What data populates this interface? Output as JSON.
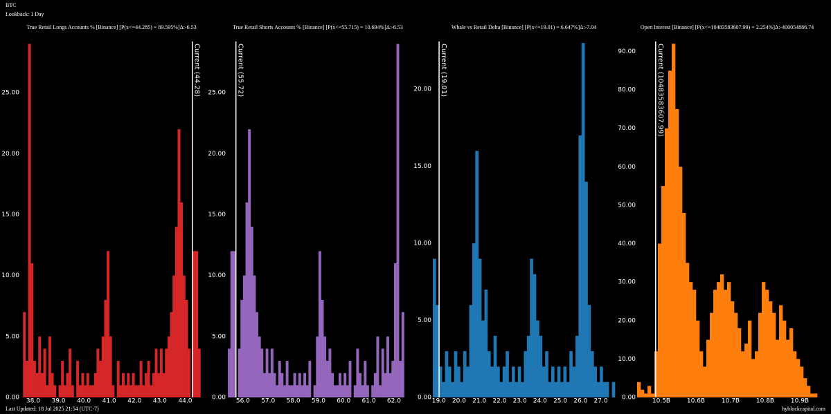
{
  "header": {
    "symbol": "BTC",
    "lookback": "Lookback: 1 Day"
  },
  "footer": {
    "updated": "Last Updated: 18 Jul 2025 21:54 (UTC-7)",
    "source": "hyblockcapital.com"
  },
  "chart_data": [
    {
      "type": "histogram",
      "title": "True Retail Longs Accounts % [Binance] [P(x<=44.285) = 89.595%]Δ:-6.53",
      "color": "#d62728",
      "bins": [
        37.6,
        37.7,
        37.8,
        37.9,
        38.0,
        38.1,
        38.2,
        38.3,
        38.4,
        38.5,
        38.6,
        38.7,
        38.8,
        38.9,
        39.0,
        39.1,
        39.2,
        39.3,
        39.4,
        39.5,
        39.6,
        39.7,
        39.8,
        39.9,
        40.0,
        40.1,
        40.2,
        40.3,
        40.4,
        40.5,
        40.6,
        40.7,
        40.8,
        40.9,
        41.0,
        41.1,
        41.2,
        41.3,
        41.4,
        41.5,
        41.6,
        41.7,
        41.8,
        41.9,
        42.0,
        42.1,
        42.2,
        42.3,
        42.4,
        42.5,
        42.6,
        42.7,
        42.8,
        42.9,
        43.0,
        43.1,
        43.2,
        43.3,
        43.4,
        43.5,
        43.6,
        43.7,
        43.8,
        43.9,
        44.0,
        44.1,
        44.2,
        44.3,
        44.4,
        44.5,
        44.6
      ],
      "counts": [
        7,
        3,
        29,
        11,
        3,
        2,
        5,
        2,
        4,
        1,
        5,
        2,
        1,
        0,
        1,
        3,
        1,
        2,
        4,
        1,
        0,
        3,
        1,
        2,
        1,
        2,
        1,
        1,
        2,
        4,
        3,
        5,
        8,
        12,
        5,
        1,
        0,
        3,
        1,
        2,
        1,
        2,
        1,
        2,
        1,
        1,
        3,
        1,
        2,
        3,
        1,
        2,
        4,
        2,
        4,
        2,
        4,
        5,
        7,
        10,
        14,
        22,
        16,
        10,
        8,
        4,
        0,
        12,
        12,
        4
      ],
      "xlim": [
        37.51,
        44.67
      ],
      "ylim": [
        0,
        29.2
      ],
      "xticks": [
        {
          "value": 38,
          "label": "38.0"
        },
        {
          "value": 39,
          "label": "39.0"
        },
        {
          "value": 40,
          "label": "40.0"
        },
        {
          "value": 41,
          "label": "41.0"
        },
        {
          "value": 42,
          "label": "42.0"
        },
        {
          "value": 43,
          "label": "43.0"
        },
        {
          "value": 44,
          "label": "44.0"
        }
      ],
      "yticks": [
        {
          "value": 0,
          "label": "0.00"
        },
        {
          "value": 5,
          "label": "5.00"
        },
        {
          "value": 10,
          "label": "10.00"
        },
        {
          "value": 15,
          "label": "15.00"
        },
        {
          "value": 20,
          "label": "20.00"
        },
        {
          "value": 25,
          "label": "25.00"
        }
      ],
      "current": 44.28,
      "current_label": "Current (44.28)"
    },
    {
      "type": "histogram",
      "title": "True Retail Shorts Accounts % [Binance] [P(x<=55.715) = 10.694%]Δ:-6.53",
      "color": "#9467bd",
      "bins": [
        55.4,
        55.5,
        55.6,
        55.7,
        55.8,
        55.9,
        56.0,
        56.1,
        56.2,
        56.3,
        56.4,
        56.5,
        56.6,
        56.7,
        56.8,
        56.9,
        57.0,
        57.1,
        57.2,
        57.3,
        57.4,
        57.5,
        57.6,
        57.7,
        57.8,
        57.9,
        58.0,
        58.1,
        58.2,
        58.3,
        58.4,
        58.5,
        58.6,
        58.7,
        58.8,
        58.9,
        59.0,
        59.1,
        59.2,
        59.3,
        59.4,
        59.5,
        59.6,
        59.7,
        59.8,
        59.9,
        60.0,
        60.1,
        60.2,
        60.3,
        60.4,
        60.5,
        60.6,
        60.7,
        60.8,
        60.9,
        61.0,
        61.1,
        61.2,
        61.3,
        61.4,
        61.5,
        61.6,
        61.7,
        61.8,
        61.9,
        62.0,
        62.1,
        62.2,
        62.3,
        62.4
      ],
      "counts": [
        4,
        12,
        12,
        0,
        4,
        8,
        10,
        16,
        22,
        14,
        10,
        7,
        5,
        4,
        2,
        4,
        2,
        4,
        2,
        1,
        3,
        2,
        1,
        3,
        1,
        1,
        2,
        1,
        2,
        1,
        2,
        1,
        3,
        0,
        1,
        5,
        12,
        8,
        5,
        3,
        4,
        2,
        1,
        1,
        2,
        1,
        2,
        1,
        3,
        0,
        1,
        4,
        2,
        1,
        3,
        1,
        0,
        1,
        2,
        5,
        1,
        4,
        2,
        5,
        2,
        3,
        11,
        29,
        3,
        7
      ],
      "xlim": [
        55.37,
        62.58
      ],
      "ylim": [
        0,
        29.2
      ],
      "xticks": [
        {
          "value": 56,
          "label": "56.0"
        },
        {
          "value": 57,
          "label": "57.0"
        },
        {
          "value": 58,
          "label": "58.0"
        },
        {
          "value": 59,
          "label": "59.0"
        },
        {
          "value": 60,
          "label": "60.0"
        },
        {
          "value": 61,
          "label": "61.0"
        },
        {
          "value": 62,
          "label": "62.0"
        }
      ],
      "yticks": [
        {
          "value": 0,
          "label": "0.00"
        },
        {
          "value": 5,
          "label": "5.00"
        },
        {
          "value": 10,
          "label": "10.00"
        },
        {
          "value": 15,
          "label": "15.00"
        },
        {
          "value": 20,
          "label": "20.00"
        },
        {
          "value": 25,
          "label": "25.00"
        }
      ],
      "current": 55.72,
      "current_label": "Current (55.72)"
    },
    {
      "type": "histogram",
      "title": "Whale vs Retail Delta [Binance] [P(x<=19.01) = 6.647%]Δ:-7.04",
      "color": "#1f77b4",
      "bins": [
        18.7,
        18.85,
        19.0,
        19.15,
        19.3,
        19.45,
        19.6,
        19.75,
        19.9,
        20.05,
        20.2,
        20.35,
        20.5,
        20.65,
        20.8,
        20.95,
        21.1,
        21.25,
        21.4,
        21.55,
        21.7,
        21.85,
        22.0,
        22.15,
        22.3,
        22.45,
        22.6,
        22.75,
        22.9,
        23.05,
        23.2,
        23.35,
        23.5,
        23.65,
        23.8,
        23.95,
        24.1,
        24.25,
        24.4,
        24.55,
        24.7,
        24.85,
        25.0,
        25.15,
        25.3,
        25.45,
        25.6,
        25.75,
        25.9,
        26.05,
        26.2,
        26.35,
        26.5,
        26.65,
        26.8,
        26.95,
        27.1,
        27.25,
        27.4,
        27.55,
        27.7
      ],
      "counts": [
        9,
        6,
        2,
        1,
        3,
        2,
        1,
        3,
        2,
        1,
        3,
        2,
        6,
        10,
        16,
        9,
        5,
        7,
        3,
        2,
        4,
        2,
        1,
        2,
        3,
        1,
        2,
        1,
        2,
        1,
        3,
        4,
        9,
        8,
        5,
        4,
        2,
        3,
        1,
        2,
        1,
        2,
        1,
        2,
        1,
        3,
        2,
        4,
        17,
        23,
        14,
        6,
        3,
        2,
        1,
        2,
        1,
        1,
        0,
        1
      ],
      "xlim": [
        18.7,
        27.7
      ],
      "ylim": [
        0,
        23.1
      ],
      "xticks": [
        {
          "value": 19,
          "label": "19.0"
        },
        {
          "value": 20,
          "label": "20.0"
        },
        {
          "value": 21,
          "label": "21.0"
        },
        {
          "value": 22,
          "label": "22.0"
        },
        {
          "value": 23,
          "label": "23.0"
        },
        {
          "value": 24,
          "label": "24.0"
        },
        {
          "value": 25,
          "label": "25.0"
        },
        {
          "value": 26,
          "label": "26.0"
        },
        {
          "value": 27,
          "label": "27.0"
        }
      ],
      "yticks": [
        {
          "value": 0,
          "label": "0.00"
        },
        {
          "value": 5,
          "label": "5.00"
        },
        {
          "value": 10,
          "label": "10.00"
        },
        {
          "value": 15,
          "label": "15.00"
        },
        {
          "value": 20,
          "label": "20.00"
        }
      ],
      "current": 19.01,
      "current_label": "Current (19.01)"
    },
    {
      "type": "histogram",
      "title": "Open Interest [Binance] [P(x<=10483583607.99) = 2.254%]Δ:-400054886.74",
      "color": "#ff7f0e",
      "bins": [
        10430000000,
        10440000000,
        10450000000,
        10460000000,
        10470000000,
        10480000000,
        10490000000,
        10500000000,
        10510000000,
        10520000000,
        10530000000,
        10540000000,
        10550000000,
        10560000000,
        10570000000,
        10580000000,
        10590000000,
        10600000000,
        10610000000,
        10620000000,
        10630000000,
        10640000000,
        10650000000,
        10660000000,
        10670000000,
        10680000000,
        10690000000,
        10700000000,
        10710000000,
        10720000000,
        10730000000,
        10740000000,
        10750000000,
        10760000000,
        10770000000,
        10780000000,
        10790000000,
        10800000000,
        10810000000,
        10820000000,
        10830000000,
        10840000000,
        10850000000,
        10860000000,
        10870000000,
        10880000000,
        10890000000,
        10900000000,
        10910000000,
        10920000000,
        10930000000,
        10940000000,
        10950000000
      ],
      "counts": [
        4,
        2,
        1,
        3,
        1,
        12,
        40,
        55,
        70,
        85,
        92,
        75,
        60,
        48,
        35,
        30,
        28,
        20,
        12,
        8,
        15,
        22,
        28,
        30,
        32,
        28,
        30,
        25,
        22,
        18,
        12,
        14,
        20,
        10,
        12,
        22,
        30,
        28,
        25,
        22,
        15,
        24,
        20,
        15,
        18,
        12,
        10,
        8,
        5,
        3,
        1,
        1
      ],
      "xlim": [
        10430000000,
        10950000000
      ],
      "ylim": [
        0,
        92.6
      ],
      "xticks": [
        {
          "value": 10500000000,
          "label": "10.5B"
        },
        {
          "value": 10600000000,
          "label": "10.6B"
        },
        {
          "value": 10700000000,
          "label": "10.7B"
        },
        {
          "value": 10800000000,
          "label": "10.8B"
        },
        {
          "value": 10900000000,
          "label": "10.9B"
        }
      ],
      "yticks": [
        {
          "value": 0,
          "label": "0.00"
        },
        {
          "value": 10,
          "label": "10.00"
        },
        {
          "value": 20,
          "label": "20.00"
        },
        {
          "value": 30,
          "label": "30.00"
        },
        {
          "value": 40,
          "label": "40.00"
        },
        {
          "value": 50,
          "label": "50.00"
        },
        {
          "value": 60,
          "label": "60.00"
        },
        {
          "value": 70,
          "label": "70.00"
        },
        {
          "value": 80,
          "label": "80.00"
        },
        {
          "value": 90,
          "label": "90.00"
        }
      ],
      "current": 10483583607.99,
      "current_label": "Current (10483583607.99)"
    }
  ]
}
